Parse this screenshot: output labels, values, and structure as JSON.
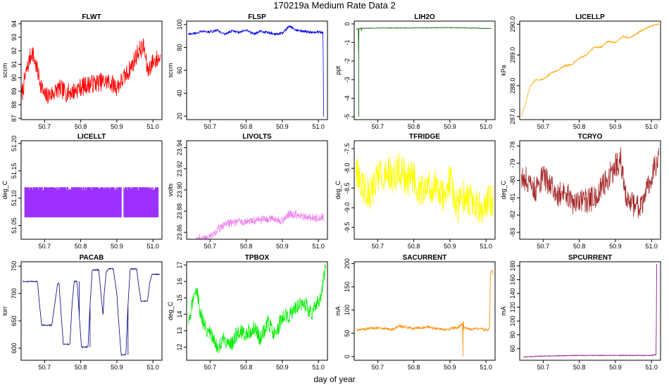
{
  "figure": {
    "title": "170219a   Medium Rate Data 2",
    "xlabel": "day of year"
  },
  "chart_data": [
    {
      "name": "FLWT",
      "type": "line",
      "color": "#ff0000",
      "ylabel": "sccm",
      "xlim": [
        50.635,
        51.025
      ],
      "ylim": [
        86.9,
        94.2
      ],
      "xticks": [
        50.7,
        50.8,
        50.9,
        51.0
      ],
      "xtick_labels": [
        "50.7",
        "50.8",
        "50.9",
        "51.0"
      ],
      "yticks": [
        87,
        88,
        89,
        90,
        91,
        92,
        93,
        94
      ],
      "ytick_labels": [
        "87",
        "88",
        "89",
        "90",
        "91",
        "92",
        "93",
        "94"
      ],
      "series": {
        "x": [
          50.635,
          50.65,
          50.665,
          50.675,
          50.69,
          50.7,
          50.72,
          50.74,
          50.76,
          50.78,
          50.8,
          50.82,
          50.84,
          50.86,
          50.88,
          50.9,
          50.92,
          50.94,
          50.96,
          50.975,
          50.985,
          51.0,
          51.02
        ],
        "y": [
          88.5,
          90.5,
          92.0,
          91.0,
          89.5,
          88.6,
          88.8,
          89.2,
          88.9,
          89.0,
          89.3,
          89.5,
          89.6,
          89.7,
          89.7,
          89.3,
          90.0,
          90.8,
          92.0,
          92.3,
          90.5,
          91.2,
          91.5
        ]
      },
      "noise": 1.4
    },
    {
      "name": "FLSP",
      "type": "line",
      "color": "#0000ee",
      "ylabel": "sccm",
      "xlim": [
        50.635,
        51.025
      ],
      "ylim": [
        17,
        103
      ],
      "xticks": [
        50.7,
        50.8,
        50.9,
        51.0
      ],
      "xtick_labels": [
        "50.7",
        "50.8",
        "50.9",
        "51.0"
      ],
      "yticks": [
        20,
        40,
        60,
        80,
        100
      ],
      "ytick_labels": [
        "20",
        "40",
        "60",
        "80",
        "100"
      ],
      "series": {
        "x": [
          50.64,
          50.66,
          50.68,
          50.7,
          50.72,
          50.74,
          50.76,
          50.78,
          50.8,
          50.82,
          50.84,
          50.86,
          50.88,
          50.9,
          50.92,
          50.94,
          50.96,
          50.98,
          51.0,
          51.013,
          51.014,
          51.016
        ],
        "y": [
          91.5,
          92.5,
          94.0,
          93.5,
          95.0,
          91.5,
          94.5,
          93.0,
          95.0,
          92.0,
          94.0,
          93.0,
          91.5,
          92.5,
          98.5,
          95.0,
          94.0,
          93.0,
          93.5,
          93.0,
          20.0,
          20.0
        ]
      },
      "noise": 2.2
    },
    {
      "name": "LIH2O",
      "type": "line",
      "color": "#006400",
      "ylabel": "ppt",
      "xlim": [
        50.635,
        51.025
      ],
      "ylim": [
        -5.15,
        0.15
      ],
      "xticks": [
        50.7,
        50.8,
        50.9,
        51.0
      ],
      "xtick_labels": [
        "50.7",
        "50.8",
        "50.9",
        "51.0"
      ],
      "yticks": [
        -5,
        -4,
        -3,
        -2,
        -1,
        0
      ],
      "ytick_labels": [
        "-5",
        "-4",
        "-3",
        "-2",
        "-1",
        "0"
      ],
      "series": {
        "x": [
          50.64,
          50.647,
          50.6475,
          50.648,
          50.655,
          50.6555,
          50.656,
          50.7,
          50.8,
          50.9,
          51.0,
          51.015
        ],
        "y": [
          -0.28,
          -0.25,
          -5.0,
          -0.25,
          -0.24,
          -0.6,
          -0.24,
          -0.22,
          -0.22,
          -0.2,
          -0.24,
          -0.24
        ]
      },
      "noise": 0.03
    },
    {
      "name": "LICELLP",
      "type": "line",
      "color": "#ffa500",
      "ylabel": "kPa",
      "xlim": [
        50.635,
        51.025
      ],
      "ylim": [
        286.9,
        290.1
      ],
      "xticks": [
        50.7,
        50.8,
        50.9,
        51.0
      ],
      "xtick_labels": [
        "50.7",
        "50.8",
        "50.9",
        "51.0"
      ],
      "yticks": [
        287,
        288,
        289,
        290
      ],
      "ytick_labels": [
        "287.0",
        "288.0",
        "289.0",
        "290.0"
      ],
      "series": {
        "x": [
          50.64,
          50.65,
          50.665,
          50.68,
          50.7,
          50.72,
          50.74,
          50.76,
          50.78,
          50.8,
          50.82,
          50.84,
          50.86,
          50.88,
          50.9,
          50.92,
          50.94,
          50.96,
          50.98,
          51.0,
          51.02
        ],
        "y": [
          287.0,
          287.4,
          288.0,
          288.2,
          288.2,
          288.4,
          288.5,
          288.65,
          288.7,
          288.9,
          289.0,
          289.25,
          289.25,
          289.45,
          289.4,
          289.6,
          289.55,
          289.7,
          289.85,
          289.95,
          290.0
        ]
      },
      "noise": 0.05
    },
    {
      "name": "LICELLT",
      "type": "line",
      "color": "#9b30ff",
      "ylabel": "deg_C",
      "xlim": [
        50.635,
        51.025
      ],
      "ylim": [
        51.025,
        51.205
      ],
      "xticks": [
        50.7,
        50.8,
        50.9,
        51.0
      ],
      "xtick_labels": [
        "50.7",
        "50.8",
        "50.9",
        "51.0"
      ],
      "yticks": [
        51.05,
        51.1,
        51.15,
        51.2
      ],
      "ytick_labels": [
        "51.05",
        "51.10",
        "51.15",
        "51.20"
      ],
      "series": {
        "x": [
          50.645,
          51.015
        ],
        "y": [
          51.065,
          51.12
        ]
      },
      "band": true
    },
    {
      "name": "LIVOLTS",
      "type": "line",
      "color": "#ee82ee",
      "ylabel": "volts",
      "xlim": [
        50.635,
        51.025
      ],
      "ylim": [
        23.8535,
        23.9465
      ],
      "xticks": [
        50.7,
        50.8,
        50.9,
        51.0
      ],
      "xtick_labels": [
        "50.7",
        "50.8",
        "50.9",
        "51.0"
      ],
      "yticks": [
        23.86,
        23.88,
        23.9,
        23.92,
        23.94
      ],
      "ytick_labels": [
        "23.86",
        "23.88",
        "23.90",
        "23.92",
        "23.94"
      ],
      "series": {
        "x": [
          50.66,
          50.7,
          50.72,
          50.74,
          50.76,
          50.8,
          50.84,
          50.88,
          50.9,
          50.92,
          50.95,
          50.98,
          51.0,
          51.015
        ],
        "y": [
          23.854,
          23.855,
          23.862,
          23.868,
          23.869,
          23.871,
          23.872,
          23.873,
          23.871,
          23.878,
          23.876,
          23.874,
          23.873,
          23.875
        ]
      },
      "noise": 0.008
    },
    {
      "name": "TFRIDGE",
      "type": "line",
      "color": "#ffff00",
      "ylabel": "deg_C",
      "xlim": [
        50.635,
        51.025
      ],
      "ylim": [
        -9.8,
        -7.3
      ],
      "xticks": [
        50.7,
        50.8,
        50.9,
        51.0
      ],
      "xtick_labels": [
        "50.7",
        "50.8",
        "50.9",
        "51.0"
      ],
      "yticks": [
        -9.5,
        -9.0,
        -8.5,
        -8.0,
        -7.5
      ],
      "ytick_labels": [
        "-9.5",
        "-9.0",
        "-8.5",
        "-8.0",
        "-7.5"
      ],
      "series": {
        "x": [
          50.64,
          50.66,
          50.68,
          50.7,
          50.72,
          50.74,
          50.76,
          50.78,
          50.8,
          50.82,
          50.84,
          50.86,
          50.88,
          50.9,
          50.92,
          50.94,
          50.96,
          50.98,
          51.0,
          51.02
        ],
        "y": [
          -8.0,
          -8.5,
          -8.6,
          -8.2,
          -8.1,
          -8.2,
          -8.0,
          -8.3,
          -8.2,
          -8.6,
          -8.5,
          -8.4,
          -8.7,
          -8.3,
          -9.0,
          -8.7,
          -8.8,
          -9.0,
          -8.9,
          -8.8
        ]
      },
      "noise": 0.9
    },
    {
      "name": "TCRYO",
      "type": "line",
      "color": "#a52a2a",
      "ylabel": "deg_C",
      "xlim": [
        50.635,
        51.025
      ],
      "ylim": [
        -83.4,
        -77.7
      ],
      "xticks": [
        50.7,
        50.8,
        50.9,
        51.0
      ],
      "xtick_labels": [
        "50.7",
        "50.8",
        "50.9",
        "51.0"
      ],
      "yticks": [
        -83,
        -82,
        -81,
        -80,
        -79,
        -78
      ],
      "ytick_labels": [
        "-83",
        "-82",
        "-81",
        "-80",
        "-79",
        "-78"
      ],
      "series": {
        "x": [
          50.64,
          50.66,
          50.68,
          50.7,
          50.72,
          50.74,
          50.76,
          50.78,
          50.8,
          50.82,
          50.84,
          50.86,
          50.88,
          50.9,
          50.915,
          50.93,
          50.95,
          50.97,
          50.99,
          51.005,
          51.02
        ],
        "y": [
          -79.8,
          -80.0,
          -80.6,
          -79.8,
          -80.3,
          -80.8,
          -80.5,
          -81.4,
          -81.2,
          -81.2,
          -81.0,
          -80.5,
          -79.8,
          -79.2,
          -78.8,
          -81.0,
          -81.5,
          -81.5,
          -80.5,
          -79.5,
          -78.5
        ]
      },
      "noise": 1.5
    },
    {
      "name": "PACAB",
      "type": "line",
      "color": "#000080",
      "ylabel": "torr",
      "xlim": [
        50.635,
        51.025
      ],
      "ylim": [
        578,
        758
      ],
      "xticks": [
        50.7,
        50.8,
        50.9,
        51.0
      ],
      "xtick_labels": [
        "50.7",
        "50.8",
        "50.9",
        "51.0"
      ],
      "yticks": [
        600,
        650,
        700,
        750
      ],
      "ytick_labels": [
        "600",
        "650",
        "700",
        "750"
      ],
      "series": {
        "x": [
          50.64,
          50.68,
          50.686,
          50.692,
          50.72,
          50.728,
          50.736,
          50.74,
          50.746,
          50.752,
          50.77,
          50.776,
          50.782,
          50.79,
          50.796,
          50.802,
          50.82,
          50.826,
          50.832,
          50.85,
          50.856,
          50.862,
          50.865,
          50.871,
          50.877,
          50.89,
          50.9,
          50.906,
          50.912,
          50.925,
          50.931,
          50.937,
          50.955,
          50.961,
          50.967,
          50.985,
          50.991,
          50.997,
          51.02
        ],
        "y": [
          722,
          722,
          680,
          642,
          642,
          680,
          718,
          718,
          660,
          607,
          607,
          680,
          722,
          722,
          660,
          602,
          602,
          680,
          743,
          743,
          700,
          660,
          700,
          740,
          745,
          745,
          700,
          640,
          588,
          588,
          680,
          745,
          745,
          712,
          686,
          686,
          720,
          735,
          735
        ]
      },
      "noise": 2
    },
    {
      "name": "TPBOX",
      "type": "line",
      "color": "#00ee00",
      "ylabel": "deg_C",
      "xlim": [
        50.635,
        51.025
      ],
      "ylim": [
        11.2,
        17.2
      ],
      "xticks": [
        50.7,
        50.8,
        50.9,
        51.0
      ],
      "xtick_labels": [
        "50.7",
        "50.8",
        "50.9",
        "51.0"
      ],
      "yticks": [
        12,
        13,
        14,
        15,
        16,
        17
      ],
      "ytick_labels": [
        "12",
        "13",
        "14",
        "15",
        "16",
        "17"
      ],
      "series": {
        "x": [
          50.64,
          50.65,
          50.66,
          50.67,
          50.68,
          50.7,
          50.72,
          50.74,
          50.76,
          50.78,
          50.8,
          50.82,
          50.84,
          50.86,
          50.88,
          50.9,
          50.92,
          50.94,
          50.96,
          50.98,
          50.99,
          51.0,
          51.01,
          51.02
        ],
        "y": [
          13.2,
          14.5,
          15.8,
          14.5,
          13.5,
          12.8,
          12.0,
          12.5,
          12.2,
          13.0,
          12.8,
          13.2,
          12.5,
          13.5,
          12.8,
          13.8,
          14.0,
          14.5,
          14.8,
          14.0,
          14.5,
          14.8,
          15.5,
          16.8
        ]
      },
      "noise": 1.0
    },
    {
      "name": "SACURRENT",
      "type": "line",
      "color": "#ff8c00",
      "ylabel": "mA",
      "xlim": [
        50.635,
        51.025
      ],
      "ylim": [
        -8,
        204
      ],
      "xticks": [
        50.7,
        50.8,
        50.9,
        51.0
      ],
      "xtick_labels": [
        "50.7",
        "50.8",
        "50.9",
        "51.0"
      ],
      "yticks": [
        0,
        50,
        100,
        150,
        200
      ],
      "ytick_labels": [
        "0",
        "50",
        "100",
        "150",
        "200"
      ],
      "series": {
        "x": [
          50.64,
          50.68,
          50.7,
          50.74,
          50.76,
          50.8,
          50.84,
          50.88,
          50.92,
          50.935,
          50.936,
          50.937,
          50.938,
          50.94,
          50.96,
          50.98,
          51.0,
          51.01,
          51.012,
          51.015,
          51.02
        ],
        "y": [
          58,
          60,
          62,
          58,
          66,
          60,
          64,
          58,
          62,
          70,
          0,
          100,
          60,
          62,
          58,
          60,
          58,
          60,
          180,
          185,
          180
        ]
      },
      "noise": 6
    },
    {
      "name": "SPCURRENT",
      "type": "line",
      "color": "#8b008b",
      "ylabel": "mA",
      "xlim": [
        50.635,
        51.025
      ],
      "ylim": [
        43,
        186
      ],
      "xticks": [
        50.7,
        50.8,
        50.9,
        51.0
      ],
      "xtick_labels": [
        "50.7",
        "50.8",
        "50.9",
        "51.0"
      ],
      "yticks": [
        60,
        80,
        100,
        120,
        140,
        160,
        180
      ],
      "ytick_labels": [
        "60",
        "80",
        "100",
        "120",
        "140",
        "160",
        "180"
      ],
      "series": {
        "x": [
          50.645,
          50.7,
          50.8,
          50.9,
          51.0,
          51.013,
          51.014,
          51.016
        ],
        "y": [
          48,
          49,
          50,
          50,
          50,
          51,
          182,
          182
        ]
      },
      "noise": 1.0
    }
  ]
}
